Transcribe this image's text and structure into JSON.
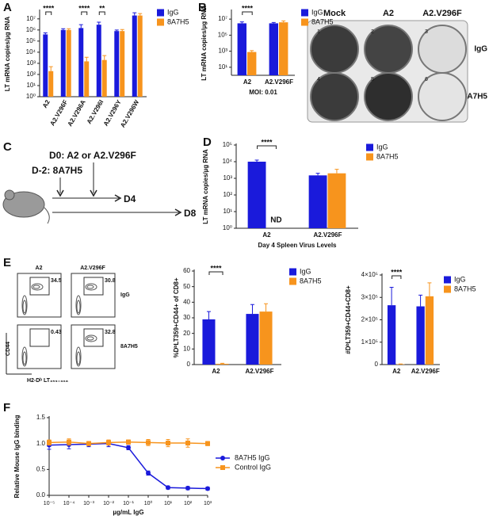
{
  "panel_labels": [
    "A",
    "B",
    "C",
    "D",
    "E",
    "F"
  ],
  "plate": {
    "columns": [
      "Mock",
      "A2",
      "A2.V296F"
    ],
    "rows": [
      "IgG",
      "8A7H5"
    ],
    "wells": [
      "1",
      "2",
      "3",
      "4",
      "5",
      "6"
    ]
  },
  "timeline": {
    "d0": "D0: A2 or A2.V296F",
    "d_minus_2": "D-2: 8A7H5",
    "d4": "D4",
    "d8": "D8"
  },
  "flow": {
    "columns": [
      "A2",
      "A2.V296F"
    ],
    "rows": [
      "IgG",
      "8A7H5"
    ],
    "gates": [
      34.5,
      30.8,
      0.43,
      32.8
    ],
    "y_axis": "CD44",
    "x_axis": "H2-Dᵇ LT₃₅₉₋₃₆₈"
  },
  "chart_data": [
    {
      "type": "bar",
      "categories": [
        "A2",
        "A2.V296F",
        "A2.V296A",
        "A2.V296I",
        "A2.V296Y",
        "A2.V296W"
      ],
      "series": [
        {
          "name": "IgG",
          "color": "#1a1adb",
          "values": [
            400000,
            1000000,
            1500000,
            3000000,
            800000,
            20000000
          ],
          "errors": [
            150000,
            300000,
            1500000,
            2000000,
            200000,
            15000000
          ]
        },
        {
          "name": "8A7H5",
          "color": "#f7941d",
          "values": [
            200,
            1000000,
            1500,
            2000,
            800000,
            20000000
          ],
          "errors": [
            300,
            300000,
            2000,
            3000,
            300000,
            10000000
          ]
        }
      ],
      "log_y": true,
      "ylim": [
        1,
        50000000
      ],
      "yticks": [
        {
          "value": 1,
          "label": "10⁰"
        },
        {
          "value": 10,
          "label": "10¹"
        },
        {
          "value": 100,
          "label": "10²"
        },
        {
          "value": 1000,
          "label": "10³"
        },
        {
          "value": 10000,
          "label": "10⁴"
        },
        {
          "value": 100000,
          "label": "10⁵"
        },
        {
          "value": 1000000,
          "label": "10⁶"
        },
        {
          "value": 10000000,
          "label": "10⁷"
        }
      ],
      "ylabel": "LT mRNA copies/µg RNA",
      "annotations": [
        "****",
        "****",
        "**"
      ]
    },
    {
      "type": "bar",
      "categories": [
        "A2",
        "A2.V296F"
      ],
      "series": [
        {
          "name": "IgG",
          "color": "#1a1adb",
          "values": [
            3000000,
            3000000
          ],
          "errors": [
            1500000,
            800000
          ]
        },
        {
          "name": "8A7H5",
          "color": "#f7941d",
          "values": [
            800,
            4000000
          ],
          "errors": [
            400,
            2000000
          ]
        }
      ],
      "log_y": true,
      "ylim": [
        1,
        100000000
      ],
      "yticks": [
        {
          "value": 10,
          "label": "10¹"
        },
        {
          "value": 1000,
          "label": "10³"
        },
        {
          "value": 100000,
          "label": "10⁵"
        },
        {
          "value": 10000000,
          "label": "10⁷"
        }
      ],
      "ylabel": "LT mRNA copies/µg RNA",
      "xlabel": "MOI: 0.01",
      "annotations": [
        "****"
      ]
    },
    {
      "type": "bar",
      "categories": [
        "A2",
        "A2.V296F"
      ],
      "series": [
        {
          "name": "IgG",
          "color": "#1a1adb",
          "values": [
            10000,
            1500
          ],
          "errors": [
            2500,
            500
          ]
        },
        {
          "name": "8A7H5",
          "color": "#f7941d",
          "values": [
            null,
            2000
          ],
          "errors": [
            null,
            1500
          ],
          "value_labels": [
            "ND",
            null
          ]
        }
      ],
      "log_y": true,
      "ylim": [
        1,
        100000
      ],
      "yticks": [
        {
          "value": 1,
          "label": "10⁰"
        },
        {
          "value": 10,
          "label": "10¹"
        },
        {
          "value": 100,
          "label": "10²"
        },
        {
          "value": 1000,
          "label": "10³"
        },
        {
          "value": 10000,
          "label": "10⁴"
        },
        {
          "value": 100000,
          "label": "10⁵"
        }
      ],
      "ylabel": "LT mRNA copies/µg RNA",
      "xlabel": "Day 4 Spleen Virus Levels",
      "annotations": [
        "****"
      ]
    },
    {
      "type": "bar",
      "categories": [
        "A2",
        "A2.V296F"
      ],
      "series": [
        {
          "name": "IgG",
          "color": "#1a1adb",
          "values": [
            29,
            32.5
          ],
          "errors": [
            5,
            6
          ]
        },
        {
          "name": "8A7H5",
          "color": "#f7941d",
          "values": [
            0.5,
            34
          ],
          "errors": [
            0.3,
            5
          ]
        }
      ],
      "log_y": false,
      "ylim": [
        0,
        60
      ],
      "yticks": [
        0,
        10,
        20,
        30,
        40,
        50,
        60
      ],
      "ylabel": "%DᵇLT359+CD44+ of CD8+",
      "annotations": [
        "****"
      ]
    },
    {
      "type": "bar",
      "categories": [
        "A2",
        "A2.V296F"
      ],
      "series": [
        {
          "name": "IgG",
          "color": "#1a1adb",
          "values": [
            265000,
            260000
          ],
          "errors": [
            80000,
            50000
          ]
        },
        {
          "name": "8A7H5",
          "color": "#f7941d",
          "values": [
            1500,
            305000
          ],
          "errors": [
            1000,
            60000
          ]
        }
      ],
      "log_y": false,
      "ylim": [
        0,
        400000
      ],
      "yticks": [
        0,
        {
          "value": 100000,
          "label": "1×10⁵"
        },
        {
          "value": 200000,
          "label": "2×10⁵"
        },
        {
          "value": 300000,
          "label": "3×10⁵"
        },
        {
          "value": 400000,
          "label": "4×10⁵"
        }
      ],
      "ylabel": "#DᵇLT359+CD44+CD8+",
      "annotations": [
        "****"
      ]
    },
    {
      "type": "line",
      "x": [
        1e-05,
        0.0001,
        0.001,
        0.01,
        0.1,
        1,
        10,
        100,
        1000
      ],
      "series": [
        {
          "name": "8A7H5 IgG",
          "color": "#1a1adb",
          "marker": "circle",
          "values": [
            0.97,
            0.98,
            0.99,
            1.0,
            0.92,
            0.43,
            0.15,
            0.14,
            0.13
          ],
          "errors": [
            0.08,
            0.08,
            0.05,
            0.06,
            0.04,
            0.04,
            0.03,
            0.03,
            0.03
          ]
        },
        {
          "name": "Control IgG",
          "color": "#f7941d",
          "marker": "square",
          "values": [
            1.02,
            1.03,
            1.0,
            1.02,
            1.03,
            1.02,
            1.01,
            1.01,
            1.0
          ],
          "errors": [
            0.05,
            0.06,
            0.04,
            0.05,
            0.04,
            0.06,
            0.07,
            0.08,
            0.04
          ]
        }
      ],
      "log_x": true,
      "xlim": [
        1e-05,
        1000
      ],
      "xticks": [
        {
          "value": 1e-05,
          "label": "10⁻⁵"
        },
        {
          "value": 0.0001,
          "label": "10⁻⁴"
        },
        {
          "value": 0.001,
          "label": "10⁻³"
        },
        {
          "value": 0.01,
          "label": "10⁻²"
        },
        {
          "value": 0.1,
          "label": "10⁻¹"
        },
        {
          "value": 1,
          "label": "10⁰"
        },
        {
          "value": 10,
          "label": "10¹"
        },
        {
          "value": 100,
          "label": "10²"
        },
        {
          "value": 1000,
          "label": "10³"
        }
      ],
      "ylim": [
        0,
        1.5
      ],
      "yticks": [
        {
          "value": 0,
          "label": "0.0"
        },
        0.5,
        {
          "value": 1,
          "label": "1.0"
        },
        1.5
      ],
      "xlabel": "µg/mL IgG",
      "ylabel": "Relative Mouse IgG binding"
    }
  ]
}
